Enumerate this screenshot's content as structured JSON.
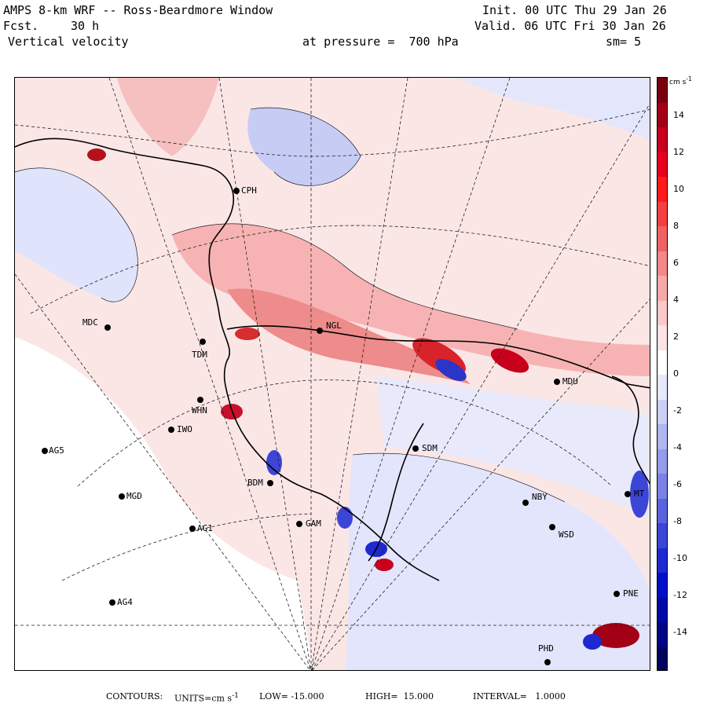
{
  "header": {
    "title": "AMPS 8-km WRF -- Ross-Beardmore Window",
    "forecast_label": "Fcst.",
    "forecast_value": "30 h",
    "variable": "Vertical velocity",
    "pressure": "at pressure =  700 hPa",
    "init": "Init. 00 UTC Thu 29 Jan 26",
    "valid": "Valid. 06 UTC Fri 30 Jan 26",
    "smoothing": "sm= 5"
  },
  "stations": [
    {
      "code": "MDC"
    },
    {
      "code": "TDM"
    },
    {
      "code": "WHN"
    },
    {
      "code": "IWO"
    },
    {
      "code": "AG5"
    },
    {
      "code": "MGD"
    },
    {
      "code": "AG1"
    },
    {
      "code": "AG4"
    },
    {
      "code": "BDM"
    },
    {
      "code": "GAM"
    },
    {
      "code": "SDM"
    },
    {
      "code": "NBY"
    },
    {
      "code": "WSD"
    },
    {
      "code": "MDU"
    },
    {
      "code": "NGL"
    },
    {
      "code": "CPH"
    },
    {
      "code": "PNE"
    },
    {
      "code": "PHD"
    },
    {
      "code": "MT"
    }
  ],
  "colorbar": {
    "units": "cm s",
    "units_exp": "-1",
    "ticks": [
      "14",
      "12",
      "10",
      "8",
      "6",
      "4",
      "2",
      "0",
      "-2",
      "-4",
      "-6",
      "-8",
      "-10",
      "-12",
      "-14"
    ],
    "colors": [
      "#7a0010",
      "#a30015",
      "#c8001c",
      "#e60020",
      "#ff1a1a",
      "#f23f3f",
      "#f06262",
      "#f48787",
      "#f7a9a9",
      "#fbc8c8",
      "#fde3e3",
      "#ffffff",
      "#e6e8fb",
      "#ccd0f5",
      "#b0b6ef",
      "#959ce9",
      "#7a82e3",
      "#5a63dd",
      "#3b45d6",
      "#1e29cf",
      "#0010c8",
      "#0008a8",
      "#000686",
      "#00045f"
    ]
  },
  "footer": {
    "contours_label": "CONTOURS:",
    "units_text": "UNITS=cm s",
    "units_exp": "-1",
    "low": "LOW= -15.000",
    "high": "HIGH=  15.000",
    "interval": "INTERVAL=   1.0000"
  },
  "legend_colors": {
    "positive": "#e05050",
    "negative": "#3a46d8",
    "neutral": "#ffffff"
  }
}
